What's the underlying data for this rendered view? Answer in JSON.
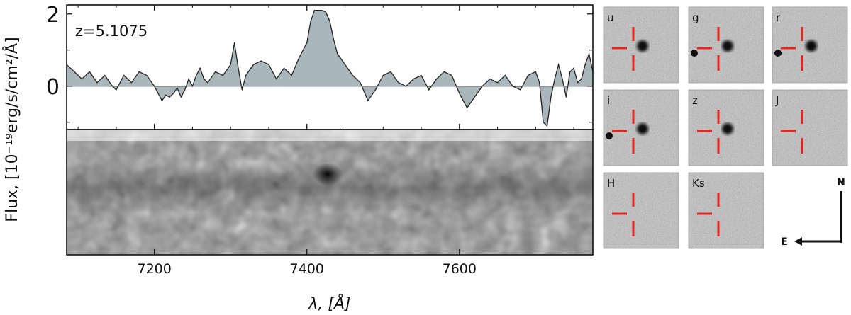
{
  "chart_data": {
    "type": "area",
    "redshift_label": "z=5.1075",
    "ylabel": "Flux, [10⁻¹⁹erg/s/cm²/Å]",
    "xlabel": "λ, [Å]",
    "xlim": [
      7085,
      7775
    ],
    "ylim": [
      -1.2,
      2.25
    ],
    "x_ticks": [
      7200,
      7400,
      7600
    ],
    "y_ticks": [
      0,
      2
    ],
    "fill_color": "#a9b7bc",
    "line_color": "#222222",
    "x": [
      7085,
      7095,
      7105,
      7115,
      7125,
      7135,
      7145,
      7150,
      7160,
      7170,
      7180,
      7190,
      7200,
      7210,
      7215,
      7220,
      7225,
      7230,
      7235,
      7240,
      7245,
      7250,
      7255,
      7260,
      7265,
      7270,
      7280,
      7290,
      7300,
      7305,
      7310,
      7315,
      7320,
      7330,
      7340,
      7350,
      7360,
      7370,
      7380,
      7390,
      7400,
      7405,
      7410,
      7415,
      7420,
      7425,
      7430,
      7435,
      7440,
      7450,
      7460,
      7470,
      7480,
      7490,
      7500,
      7510,
      7520,
      7530,
      7540,
      7550,
      7560,
      7570,
      7580,
      7590,
      7600,
      7610,
      7620,
      7630,
      7640,
      7650,
      7660,
      7670,
      7680,
      7690,
      7700,
      7705,
      7710,
      7715,
      7720,
      7725,
      7730,
      7735,
      7740,
      7745,
      7750,
      7755,
      7760,
      7765,
      7770,
      7775
    ],
    "y": [
      0.6,
      0.4,
      0.2,
      0.4,
      0.1,
      0.3,
      0.0,
      -0.1,
      0.3,
      0.1,
      0.4,
      0.3,
      0.0,
      -0.4,
      -0.25,
      -0.3,
      -0.2,
      -0.05,
      -0.3,
      -0.1,
      0.2,
      0.0,
      0.3,
      0.5,
      0.2,
      0.1,
      0.4,
      0.3,
      0.6,
      1.2,
      0.5,
      -0.1,
      0.3,
      0.6,
      0.7,
      0.6,
      0.2,
      0.5,
      0.3,
      0.8,
      1.2,
      1.8,
      2.1,
      2.1,
      2.1,
      2.05,
      1.8,
      1.3,
      0.9,
      0.6,
      0.3,
      0.1,
      -0.4,
      -0.1,
      0.3,
      0.4,
      0.1,
      0.0,
      0.2,
      0.3,
      -0.1,
      0.2,
      0.4,
      0.3,
      -0.2,
      -0.6,
      -0.3,
      0.0,
      0.2,
      0.1,
      0.3,
      0.0,
      -0.1,
      0.3,
      0.4,
      0.1,
      -1.0,
      -1.1,
      -0.3,
      0.2,
      0.6,
      0.2,
      -0.3,
      0.4,
      0.5,
      0.1,
      0.2,
      0.6,
      0.9,
      0.4
    ]
  },
  "thumbnails": [
    {
      "label": "u"
    },
    {
      "label": "g"
    },
    {
      "label": "r"
    },
    {
      "label": "i"
    },
    {
      "label": "z"
    },
    {
      "label": "J"
    },
    {
      "label": "H"
    },
    {
      "label": "Ks"
    }
  ],
  "compass": {
    "north": "N",
    "east": "E"
  }
}
